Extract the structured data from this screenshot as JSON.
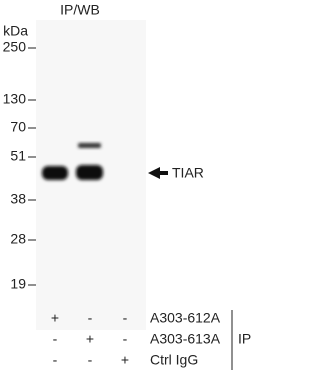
{
  "header": {
    "title": "IP/WB"
  },
  "markers": {
    "unit": "kDa",
    "labels": [
      "250",
      "130",
      "70",
      "51",
      "38",
      "28",
      "19"
    ]
  },
  "band_label": "TIAR",
  "lanes": {
    "rows": [
      {
        "label": "A303-612A",
        "signs": [
          "+",
          "-",
          "-"
        ]
      },
      {
        "label": "A303-613A",
        "signs": [
          "-",
          "+",
          "-"
        ]
      },
      {
        "label": "Ctrl IgG",
        "signs": [
          "-",
          "-",
          "+"
        ]
      }
    ],
    "group_label": "IP"
  }
}
